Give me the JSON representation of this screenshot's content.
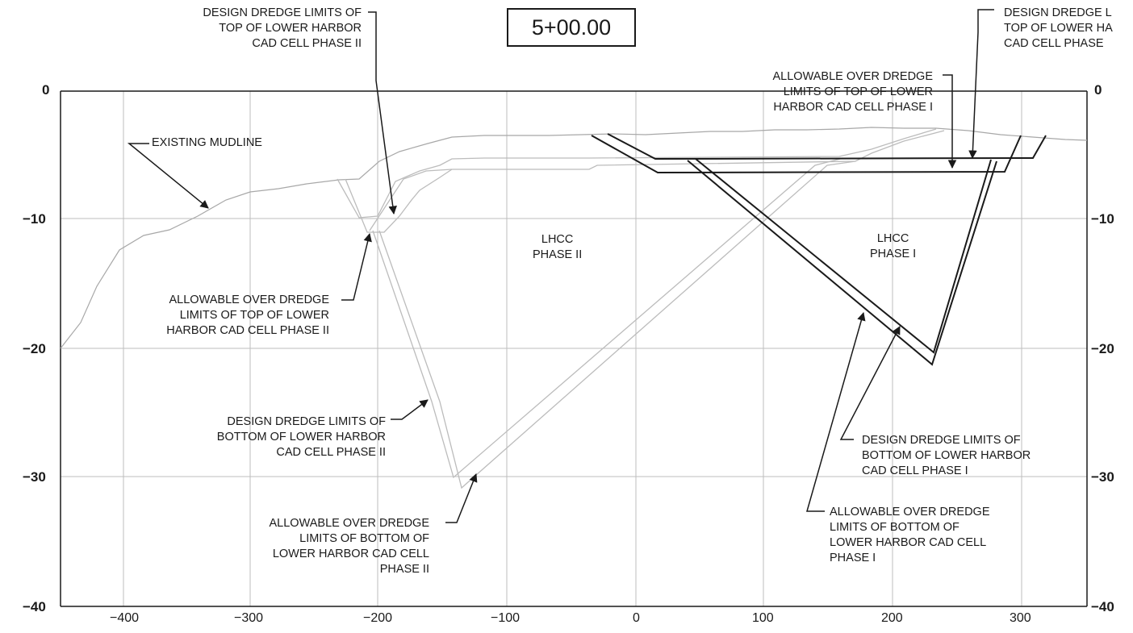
{
  "station": "5+00.00",
  "axes": {
    "x_ticks": [
      "−400",
      "−300",
      "−200",
      "−100",
      "0",
      "100",
      "200",
      "300"
    ],
    "y_ticks_left": [
      "0",
      "−10",
      "−20",
      "−30",
      "−40"
    ],
    "y_ticks_right": [
      "0",
      "−10",
      "−20",
      "−30",
      "−40"
    ]
  },
  "regions": {
    "phase2": [
      "LHCC",
      "PHASE II"
    ],
    "phase1": [
      "LHCC",
      "PHASE I"
    ]
  },
  "callouts": {
    "existing_mudline": [
      "EXISTING MUDLINE"
    ],
    "design_top_phase2": [
      "DESIGN DREDGE LIMITS OF",
      "TOP OF LOWER HARBOR",
      "CAD CELL PHASE II"
    ],
    "design_top_phase1": [
      "DESIGN DREDGE L",
      "TOP OF LOWER HA",
      "CAD CELL  PHASE"
    ],
    "allow_top_phase1": [
      "ALLOWABLE OVER DREDGE",
      "LIMITS OF TOP OF LOWER",
      "HARBOR CAD CELL PHASE I"
    ],
    "allow_top_phase2": [
      "ALLOWABLE OVER DREDGE",
      "LIMITS OF TOP OF LOWER",
      "HARBOR CAD CELL PHASE II"
    ],
    "design_bottom_phase2": [
      "DESIGN DREDGE LIMITS OF",
      "BOTTOM OF LOWER HARBOR",
      "CAD CELL PHASE II"
    ],
    "allow_bottom_phase2": [
      "ALLOWABLE OVER DREDGE",
      "LIMITS OF BOTTOM OF",
      "LOWER HARBOR CAD CELL",
      "PHASE II"
    ],
    "design_bottom_phase1": [
      "DESIGN DREDGE LIMITS OF",
      "BOTTOM OF LOWER HARBOR",
      "CAD CELL PHASE I"
    ],
    "allow_bottom_phase1": [
      "ALLOWABLE OVER DREDGE",
      "LIMITS OF BOTTOM OF",
      "LOWER HARBOR CAD CELL",
      "PHASE I"
    ]
  },
  "colors": {
    "ink": "#1a1a1a",
    "grid": "#b9b9b9",
    "phase2_lines": "#bdbdbd",
    "mudline": "#a8a8a8"
  }
}
